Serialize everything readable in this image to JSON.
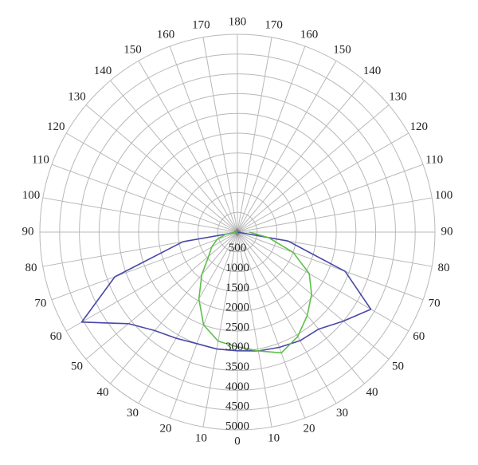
{
  "chart_data": {
    "type": "polar",
    "x": [
      -90,
      -80,
      -70,
      -60,
      -50,
      -40,
      -30,
      -20,
      -10,
      0,
      10,
      20,
      30,
      40,
      50,
      60,
      70,
      80,
      90
    ],
    "series": [
      {
        "color": "#4848a8",
        "values": [
          0,
          1400,
          3300,
          4550,
          3600,
          3250,
          3100,
          3000,
          3000,
          3000,
          3050,
          3100,
          3170,
          3200,
          3500,
          3900,
          2900,
          1300,
          0
        ]
      },
      {
        "color": "#5cbf48",
        "values": [
          0,
          300,
          550,
          750,
          950,
          1400,
          1950,
          2500,
          2800,
          2900,
          3050,
          3250,
          3050,
          2750,
          2450,
          2100,
          1500,
          800,
          300
        ]
      }
    ],
    "rlim": [
      0,
      5000
    ],
    "rticks": [
      500,
      1000,
      1500,
      2000,
      2500,
      3000,
      3500,
      4000,
      4500,
      5000
    ],
    "xticks": [
      {
        "value": -170,
        "label": "170"
      },
      {
        "value": -160,
        "label": "160"
      },
      {
        "value": -150,
        "label": "150"
      },
      {
        "value": -140,
        "label": "140"
      },
      {
        "value": -130,
        "label": "130"
      },
      {
        "value": -120,
        "label": "120"
      },
      {
        "value": -110,
        "label": "110"
      },
      {
        "value": -100,
        "label": "100"
      },
      {
        "value": -90,
        "label": "90"
      },
      {
        "value": -80,
        "label": "80"
      },
      {
        "value": -70,
        "label": "70"
      },
      {
        "value": -60,
        "label": "60"
      },
      {
        "value": -50,
        "label": "50"
      },
      {
        "value": -40,
        "label": "40"
      },
      {
        "value": -30,
        "label": "30"
      },
      {
        "value": -20,
        "label": "20"
      },
      {
        "value": -10,
        "label": "10"
      },
      0,
      10,
      20,
      30,
      40,
      50,
      60,
      70,
      80,
      90,
      100,
      110,
      120,
      130,
      140,
      150,
      160,
      170,
      180
    ],
    "grid": true
  }
}
